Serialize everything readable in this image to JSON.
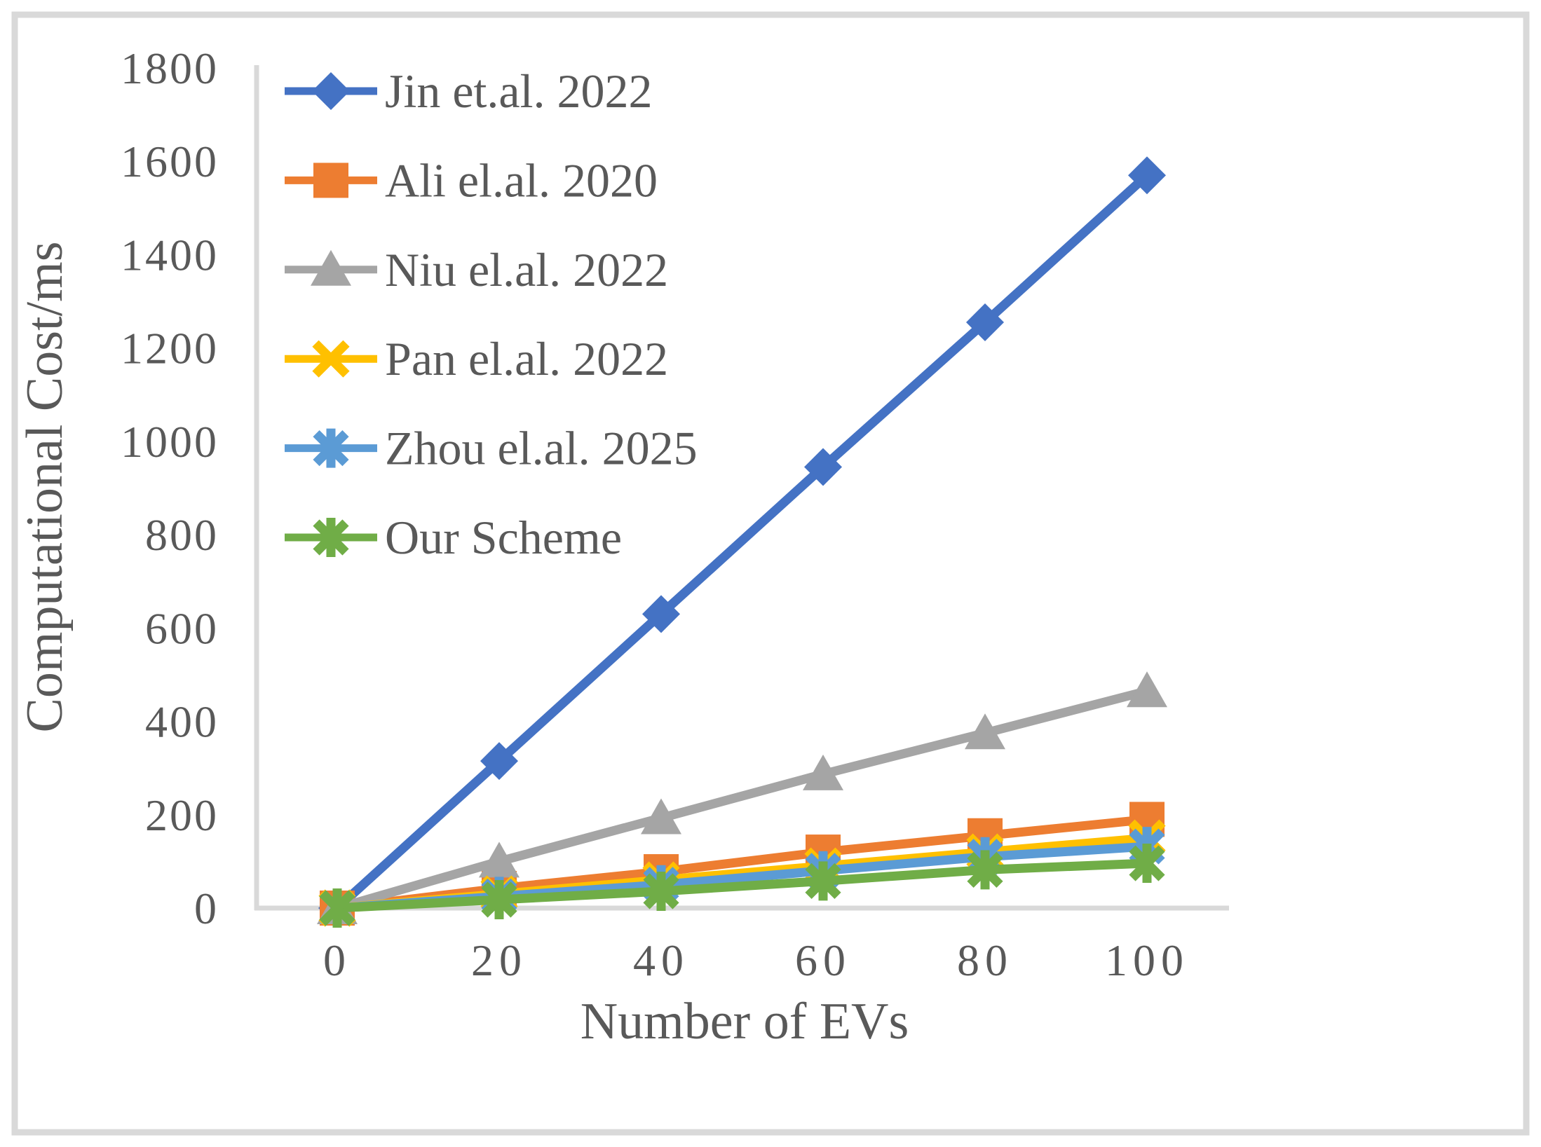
{
  "figure": {
    "background": "#FFFFFF",
    "border_color": "#D9D9D9",
    "axis_line_color": "#D9D9D9",
    "text_color": "#595959"
  },
  "chart_data": {
    "type": "line",
    "title": "",
    "xlabel": "Number of EVs",
    "ylabel": "Computational Cost/ms",
    "categories": [
      0,
      20,
      40,
      60,
      80,
      100
    ],
    "xtick_labels": [
      "0",
      "20",
      "40",
      "60",
      "80",
      "100"
    ],
    "ytick_labels": [
      "0",
      "200",
      "400",
      "600",
      "800",
      "1000",
      "1200",
      "1400",
      "1600",
      "1800"
    ],
    "yticks": [
      0,
      200,
      400,
      600,
      800,
      1000,
      1200,
      1400,
      1600,
      1800
    ],
    "ylim": [
      0,
      1800
    ],
    "grid": false,
    "legend_position": "top-left-inside",
    "series": [
      {
        "name": "Jin et.al. 2022",
        "color": "#4472C4",
        "marker": "diamond",
        "values": [
          0,
          315,
          630,
          945,
          1255,
          1570
        ]
      },
      {
        "name": "Ali el.al. 2020",
        "color": "#ED7D31",
        "marker": "square",
        "values": [
          0,
          42,
          78,
          120,
          155,
          190
        ]
      },
      {
        "name": "Niu el.al. 2022",
        "color": "#A5A5A5",
        "marker": "triangle",
        "values": [
          0,
          100,
          193,
          287,
          375,
          465
        ]
      },
      {
        "name": "Pan el.al. 2022",
        "color": "#FFC000",
        "marker": "x",
        "values": [
          0,
          30,
          60,
          90,
          120,
          150
        ]
      },
      {
        "name": "Zhou el.al. 2025",
        "color": "#5B9BD5",
        "marker": "asterisk",
        "values": [
          0,
          25,
          50,
          80,
          110,
          132
        ]
      },
      {
        "name": "Our Scheme",
        "color": "#70AD47",
        "marker": "asterisk",
        "values": [
          0,
          18,
          36,
          58,
          82,
          96
        ]
      }
    ]
  }
}
